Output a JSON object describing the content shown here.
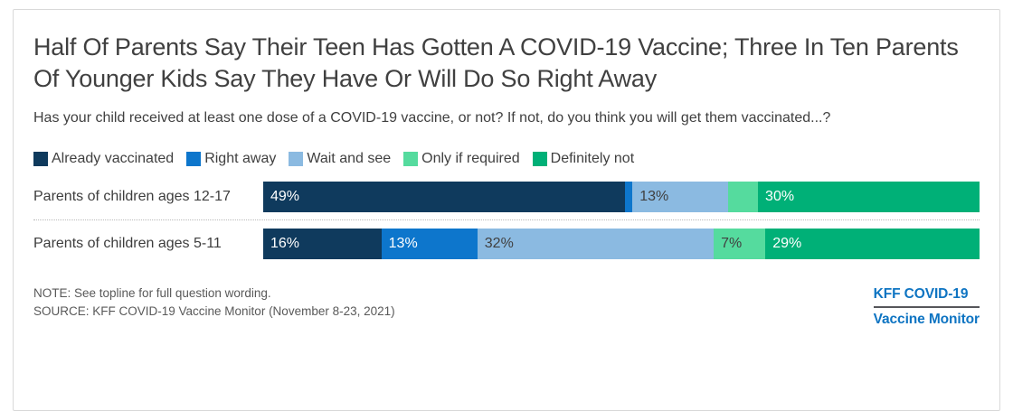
{
  "header": {
    "title": "Half Of Parents Say Their Teen Has Gotten A COVID-19 Vaccine; Three In Ten Parents Of Younger Kids Say They Have Or Will Do So Right Away",
    "subtitle": "Has your child received at least one dose of a COVID-19 vaccine, or not? If not, do you think you will get them vaccinated...?"
  },
  "chart_data": {
    "type": "bar",
    "orientation": "horizontal",
    "stacked": true,
    "value_unit": "percent",
    "legend_position": "top",
    "grid": false,
    "categories": [
      "Parents of children ages 12-17",
      "Parents of children ages 5-11"
    ],
    "series": [
      {
        "name": "Already vaccinated",
        "color": "#0f3a5d",
        "label_color": "#ffffff",
        "values": [
          49,
          16
        ]
      },
      {
        "name": "Right away",
        "color": "#0d76cc",
        "label_color": "#ffffff",
        "values": [
          1,
          13
        ]
      },
      {
        "name": "Wait and see",
        "color": "#8bbae1",
        "label_color": "#404040",
        "values": [
          13,
          32
        ]
      },
      {
        "name": "Only if required",
        "color": "#55db9e",
        "label_color": "#404040",
        "values": [
          4,
          7
        ]
      },
      {
        "name": "Definitely not",
        "color": "#00b077",
        "label_color": "#ffffff",
        "values": [
          30,
          29
        ]
      }
    ],
    "data_labels": [
      [
        "49%",
        "",
        "13%",
        "",
        "30%"
      ],
      [
        "16%",
        "13%",
        "32%",
        "7%",
        "29%"
      ]
    ]
  },
  "footer": {
    "note": "NOTE: See topline for full question wording.",
    "source": "SOURCE: KFF COVID-19 Vaccine Monitor (November 8-23, 2021)",
    "logo_line1": "KFF COVID-19",
    "logo_line2": "Vaccine Monitor"
  }
}
